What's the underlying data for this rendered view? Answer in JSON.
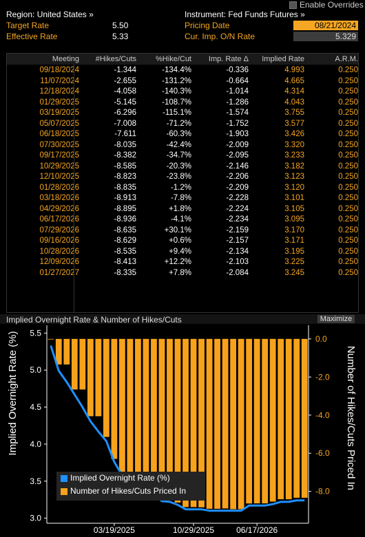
{
  "header": {
    "enable_overrides": "Enable Overrides",
    "region": "Region: United States »",
    "instrument": "Instrument: Fed Funds Futures »",
    "target_label": "Target Rate",
    "target_value": "5.50",
    "effective_label": "Effective Rate",
    "effective_value": "5.33",
    "pricing_label": "Pricing Date",
    "pricing_value": "08/21/2024",
    "overnight_label": "Cur. Imp. O/N Rate",
    "overnight_value": "5.329"
  },
  "table": {
    "columns": [
      "Meeting",
      "#Hikes/Cuts",
      "%Hike/Cut",
      "Imp. Rate Δ",
      "Implied Rate",
      "A.R.M."
    ],
    "rows": [
      [
        "09/18/2024",
        "-1.344",
        "-134.4%",
        "-0.336",
        "4.993",
        "0.250"
      ],
      [
        "11/07/2024",
        "-2.655",
        "-131.2%",
        "-0.664",
        "4.665",
        "0.250"
      ],
      [
        "12/18/2024",
        "-4.058",
        "-140.3%",
        "-1.014",
        "4.314",
        "0.250"
      ],
      [
        "01/29/2025",
        "-5.145",
        "-108.7%",
        "-1.286",
        "4.043",
        "0.250"
      ],
      [
        "03/19/2025",
        "-6.296",
        "-115.1%",
        "-1.574",
        "3.755",
        "0.250"
      ],
      [
        "05/07/2025",
        "-7.008",
        "-71.2%",
        "-1.752",
        "3.577",
        "0.250"
      ],
      [
        "06/18/2025",
        "-7.611",
        "-60.3%",
        "-1.903",
        "3.426",
        "0.250"
      ],
      [
        "07/30/2025",
        "-8.035",
        "-42.4%",
        "-2.009",
        "3.320",
        "0.250"
      ],
      [
        "09/17/2025",
        "-8.382",
        "-34.7%",
        "-2.095",
        "3.233",
        "0.250"
      ],
      [
        "10/29/2025",
        "-8.585",
        "-20.3%",
        "-2.146",
        "3.182",
        "0.250"
      ],
      [
        "12/10/2025",
        "-8.823",
        "-23.8%",
        "-2.206",
        "3.123",
        "0.250"
      ],
      [
        "01/28/2026",
        "-8.835",
        "-1.2%",
        "-2.209",
        "3.120",
        "0.250"
      ],
      [
        "03/18/2026",
        "-8.913",
        "-7.8%",
        "-2.228",
        "3.101",
        "0.250"
      ],
      [
        "04/29/2026",
        "-8.895",
        "+1.8%",
        "-2.224",
        "3.105",
        "0.250"
      ],
      [
        "06/17/2026",
        "-8.936",
        "-4.1%",
        "-2.234",
        "3.095",
        "0.250"
      ],
      [
        "07/29/2026",
        "-8.635",
        "+30.1%",
        "-2.159",
        "3.170",
        "0.250"
      ],
      [
        "09/16/2026",
        "-8.629",
        "+0.6%",
        "-2.157",
        "3.171",
        "0.250"
      ],
      [
        "10/28/2026",
        "-8.535",
        "+9.4%",
        "-2.134",
        "3.195",
        "0.250"
      ],
      [
        "12/09/2026",
        "-8.413",
        "+12.2%",
        "-2.103",
        "3.225",
        "0.250"
      ],
      [
        "01/27/2027",
        "-8.335",
        "+7.8%",
        "-2.084",
        "3.245",
        "0.250"
      ]
    ]
  },
  "panel": {
    "title": "Implied Overnight Rate & Number of Hikes/Cuts",
    "maximize": "Maximize"
  },
  "colors": {
    "accent": "#f5a623",
    "line": "#1e90ff",
    "bar": "#f7a21b"
  },
  "chart_data": {
    "type": "bar",
    "xlabel": "",
    "ylabel": "Implied Overnight Rate (%)",
    "y2label": "Number of Hikes/Cuts Priced In",
    "ylim": [
      2.95,
      5.55
    ],
    "y2lim": [
      -9.6,
      0.5
    ],
    "yticks": [
      "5.5",
      "5.0",
      "4.5",
      "4.0",
      "3.5",
      "3.0"
    ],
    "y2ticks": [
      "0.0",
      "-2.0",
      "-4.0",
      "-6.0",
      "-8.0"
    ],
    "xticks": [
      "03/19/2025",
      "10/29/2025",
      "06/17/2026"
    ],
    "legend": [
      "Implied Overnight Rate (%)",
      "Number of Hikes/Cuts Priced In"
    ],
    "bars": [
      0,
      -1.344,
      -1.344,
      -2.655,
      -2.655,
      -4.058,
      -4.058,
      -5.145,
      -6.296,
      -7.008,
      -7.008,
      -7.611,
      -7.611,
      -8.035,
      -8.382,
      -8.382,
      -8.585,
      -8.823,
      -8.823,
      -8.835,
      -8.913,
      -8.913,
      -8.895,
      -8.936,
      -8.936,
      -8.635,
      -8.629,
      -8.629,
      -8.535,
      -8.413,
      -8.413,
      -8.335,
      -8.335
    ],
    "line": [
      5.33,
      4.99,
      4.84,
      4.67,
      4.5,
      4.31,
      4.17,
      4.04,
      3.76,
      3.58,
      3.52,
      3.43,
      3.37,
      3.32,
      3.23,
      3.22,
      3.18,
      3.12,
      3.12,
      3.12,
      3.1,
      3.1,
      3.1,
      3.1,
      3.1,
      3.17,
      3.17,
      3.17,
      3.19,
      3.22,
      3.22,
      3.24,
      3.24
    ]
  }
}
